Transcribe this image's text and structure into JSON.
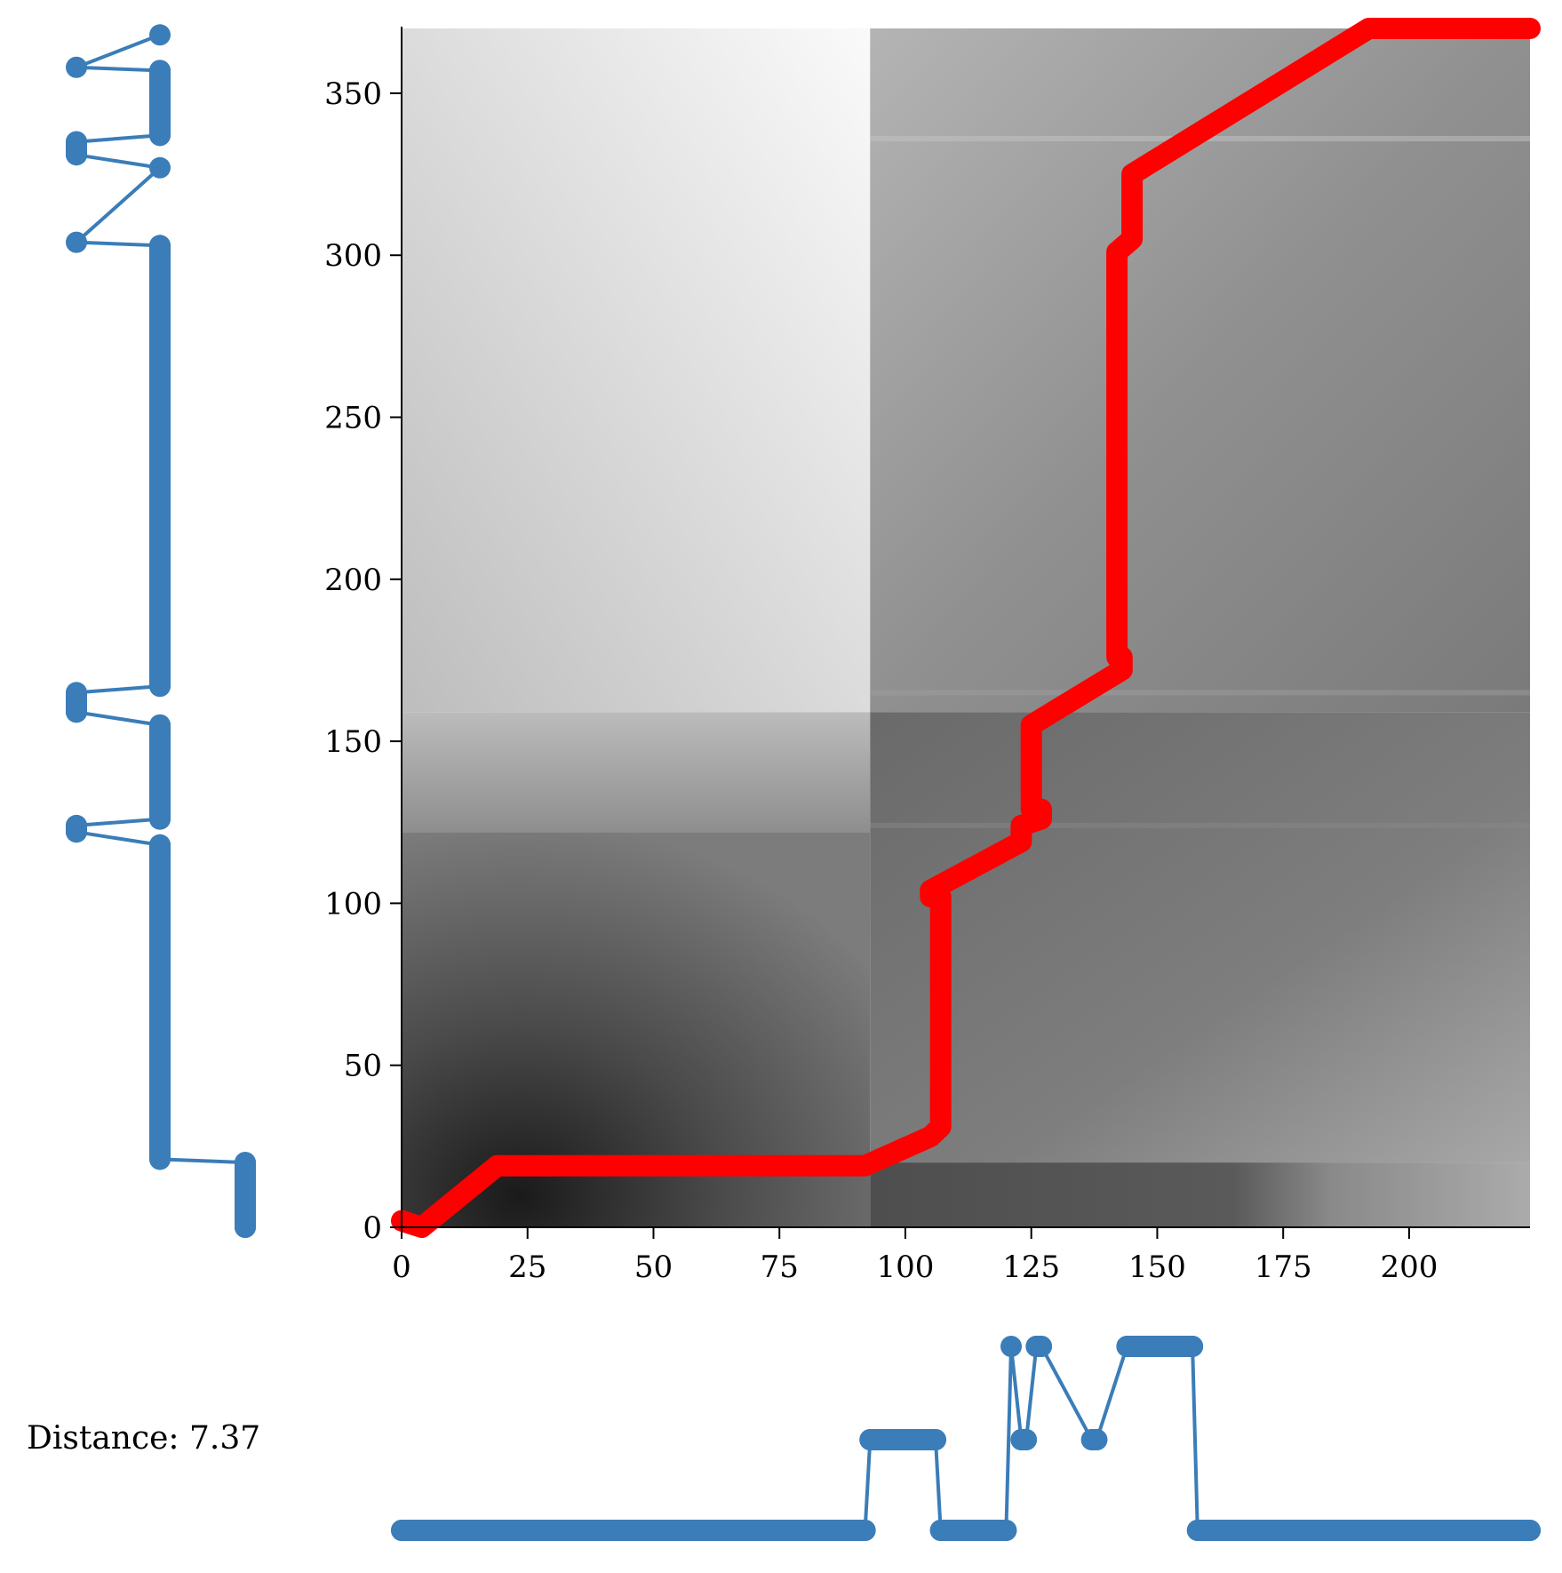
{
  "distance_label": "Distance: 7.37",
  "chart_data": [
    {
      "type": "heatmap",
      "title": "",
      "xlabel": "",
      "ylabel": "",
      "xlim": [
        0,
        224
      ],
      "ylim": [
        0,
        370
      ],
      "xticks": [
        0,
        25,
        50,
        75,
        100,
        125,
        150,
        175,
        200
      ],
      "yticks": [
        0,
        50,
        100,
        150,
        200,
        250,
        300,
        350
      ],
      "colormap": "grayscale (dark = low cost, light = high cost)",
      "grid": false,
      "legend": "none",
      "path_color": "#ff0000",
      "warping_path": {
        "x": [
          0,
          4,
          19,
          92,
          105,
          107,
          107,
          105,
          105,
          123,
          123,
          127,
          127,
          125,
          125,
          143,
          143,
          142,
          142,
          145,
          145,
          145,
          192,
          224
        ],
        "y": [
          2,
          0,
          19,
          19,
          28,
          31,
          102,
          102,
          104,
          119,
          124,
          126,
          129,
          129,
          155,
          172,
          176,
          176,
          301,
          305,
          305,
          325,
          370,
          370
        ]
      }
    },
    {
      "type": "line",
      "title": "",
      "orientation": "horizontal",
      "position": "bottom",
      "color": "#3a7db8",
      "levels": [
        0,
        1,
        2
      ],
      "x": [
        0,
        92,
        93,
        106,
        107,
        120,
        121,
        123,
        124,
        126,
        127,
        137,
        138,
        144,
        145,
        157,
        158,
        224
      ],
      "y": [
        0,
        0,
        1,
        1,
        0,
        0,
        2,
        1,
        1,
        2,
        2,
        1,
        1,
        2,
        2,
        2,
        0,
        0
      ]
    },
    {
      "type": "line",
      "title": "",
      "orientation": "vertical",
      "position": "left",
      "color": "#3a7db8",
      "levels": [
        0,
        1,
        2
      ],
      "y": [
        0,
        20,
        21,
        118,
        122,
        124,
        126,
        155,
        159,
        165,
        167,
        303,
        304,
        327,
        331,
        335,
        337,
        357,
        358,
        368
      ],
      "x": [
        2,
        2,
        1,
        1,
        0,
        0,
        1,
        1,
        0,
        0,
        1,
        1,
        0,
        1,
        0,
        0,
        1,
        1,
        0,
        1
      ]
    }
  ]
}
